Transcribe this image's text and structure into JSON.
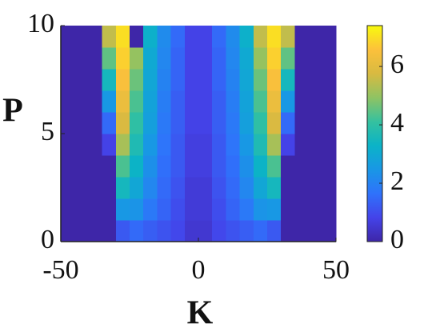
{
  "chart_data": {
    "type": "heatmap",
    "xlabel": "K",
    "ylabel": "P",
    "x": [
      -47.5,
      -42.5,
      -37.5,
      -32.5,
      -27.5,
      -22.5,
      -17.5,
      -12.5,
      -7.5,
      -2.5,
      2.5,
      7.5,
      12.5,
      17.5,
      22.5,
      27.5,
      32.5,
      37.5,
      42.5,
      47.5
    ],
    "y": [
      0.5,
      1.5,
      2.5,
      3.5,
      4.5,
      5.5,
      6.5,
      7.5,
      8.5,
      9.5
    ],
    "z": [
      [
        0,
        0,
        0,
        0,
        1.2,
        1.5,
        1.3,
        1.1,
        0.9,
        0.5,
        0.5,
        0.9,
        1.1,
        1.3,
        1.5,
        1.2,
        0,
        0,
        0,
        0
      ],
      [
        0,
        0,
        0,
        0,
        2.5,
        2.4,
        1.8,
        1.4,
        1.0,
        0.6,
        0.6,
        1.0,
        1.4,
        1.8,
        2.4,
        2.5,
        0,
        0,
        0,
        0
      ],
      [
        0,
        0,
        0,
        0,
        3.5,
        2.9,
        2.1,
        1.5,
        1.1,
        0.6,
        0.6,
        1.1,
        1.5,
        2.1,
        2.9,
        3.5,
        0,
        0,
        0,
        0
      ],
      [
        0,
        0,
        0,
        0,
        4.3,
        3.3,
        2.3,
        1.6,
        1.2,
        0.7,
        0.7,
        1.2,
        1.6,
        2.3,
        3.3,
        4.3,
        0,
        0,
        0,
        0
      ],
      [
        0,
        0,
        0,
        0.8,
        5.2,
        3.7,
        2.5,
        1.7,
        1.2,
        0.7,
        0.7,
        1.2,
        1.7,
        2.5,
        3.7,
        5.2,
        0.8,
        0,
        0,
        0
      ],
      [
        0,
        0,
        0,
        1.5,
        5.8,
        4.0,
        2.7,
        1.8,
        1.3,
        0.8,
        0.8,
        1.3,
        1.8,
        2.7,
        4.0,
        5.8,
        1.5,
        0,
        0,
        0
      ],
      [
        0,
        0,
        0,
        2.5,
        6.2,
        4.3,
        2.8,
        1.9,
        1.3,
        0.8,
        0.8,
        1.3,
        1.9,
        2.8,
        4.3,
        6.2,
        2.5,
        0,
        0,
        0
      ],
      [
        0,
        0,
        0,
        3.5,
        6.5,
        4.6,
        2.9,
        2.0,
        1.4,
        0.8,
        0.8,
        1.4,
        2.0,
        2.9,
        4.6,
        6.5,
        3.5,
        0,
        0,
        0
      ],
      [
        0,
        0,
        0,
        4.5,
        6.8,
        5.0,
        3.0,
        2.1,
        1.4,
        0.8,
        0.8,
        1.4,
        2.1,
        3.0,
        5.0,
        6.8,
        4.5,
        0,
        0,
        0
      ],
      [
        0,
        0,
        0,
        5.5,
        7.0,
        0,
        3.2,
        2.2,
        1.5,
        0.8,
        0.8,
        1.5,
        2.2,
        3.2,
        5.5,
        7.0,
        5.5,
        0,
        0,
        0
      ]
    ],
    "xlim": [
      -50,
      50
    ],
    "xticks": [
      -50,
      0,
      50
    ],
    "ylim": [
      0,
      10
    ],
    "yticks": [
      0,
      5,
      10
    ],
    "clim": [
      0,
      7.4
    ],
    "colorbar_ticks": [
      0,
      2,
      4,
      6
    ],
    "colormap": [
      "#3e26a8",
      "#4443e9",
      "#2f72fb",
      "#1997e5",
      "#0bb3c7",
      "#35c19f",
      "#8fc363",
      "#d8ba41",
      "#fcc13b",
      "#f8fa0d"
    ]
  }
}
